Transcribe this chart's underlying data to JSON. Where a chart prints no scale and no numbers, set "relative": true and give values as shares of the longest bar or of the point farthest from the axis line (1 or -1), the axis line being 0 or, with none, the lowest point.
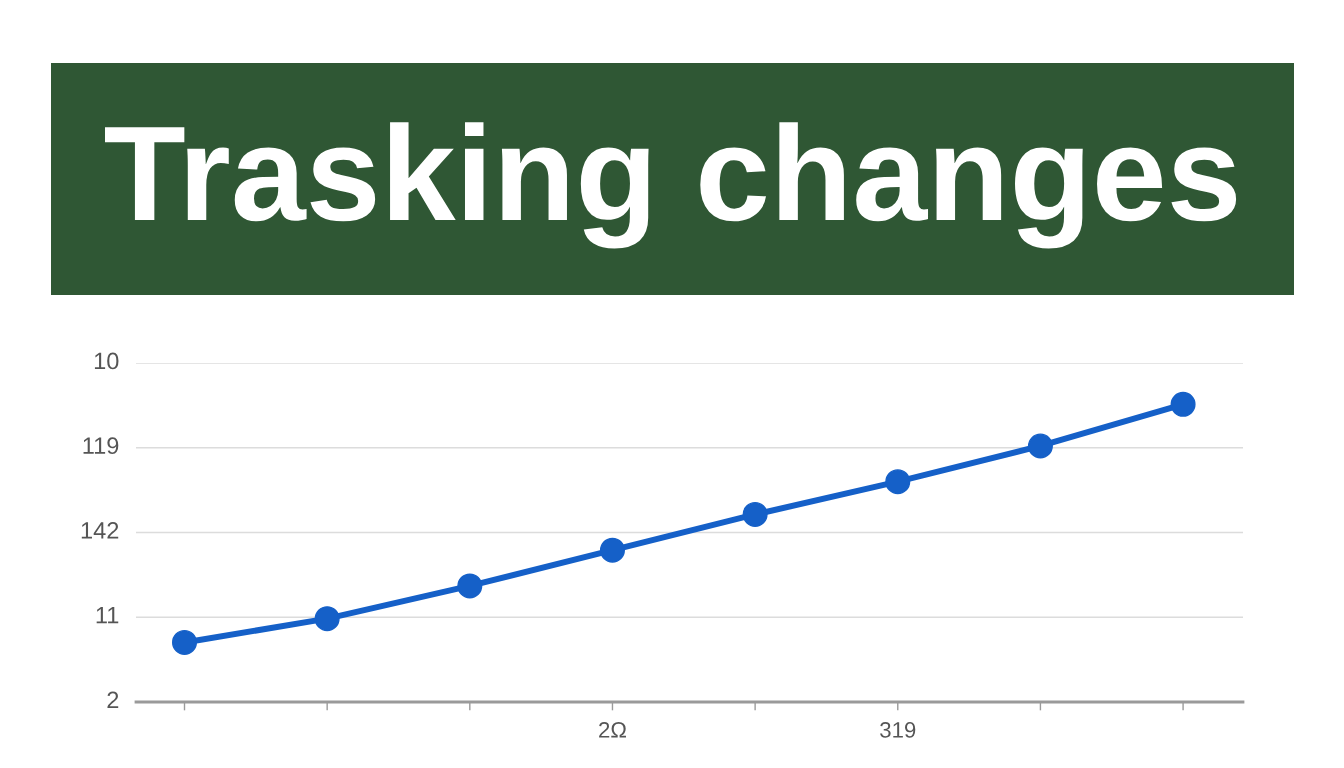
{
  "chart_data": {
    "type": "line",
    "title": "Trasking changes",
    "categories": [
      null,
      null,
      null,
      "2Ω",
      null,
      "319",
      null,
      null
    ],
    "series": [
      {
        "color": "#1560c8",
        "values": [
          0.2,
          0.28,
          0.39,
          0.51,
          0.63,
          0.74,
          0.86,
          1.0
        ]
      }
    ],
    "relative": true,
    "annotations": [
      "10",
      "119",
      "142",
      "11",
      "2"
    ],
    "grid": "y",
    "marker": "circle",
    "line_style": "solid"
  }
}
